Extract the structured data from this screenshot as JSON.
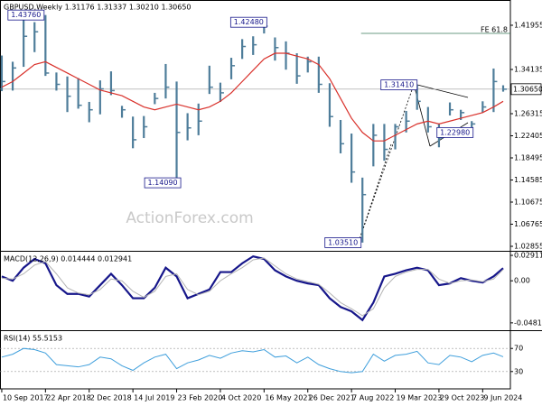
{
  "chart_data": [
    {
      "type": "ohlc",
      "title": "GBPUSD,Weekly  1.31176 1.31337 1.30210 1.30650",
      "x": [
        "2017-09-10",
        "2017-11-05",
        "2017-12-31",
        "2018-02-25",
        "2018-04-22",
        "2018-06-17",
        "2018-08-12",
        "2018-10-07",
        "2018-12-02",
        "2019-01-27",
        "2019-03-24",
        "2019-05-19",
        "2019-07-14",
        "2019-09-08",
        "2019-11-03",
        "2019-12-29",
        "2020-02-23",
        "2020-04-19",
        "2020-06-14",
        "2020-08-09",
        "2020-10-04",
        "2020-11-29",
        "2021-01-24",
        "2021-03-21",
        "2021-05-16",
        "2021-07-11",
        "2021-09-05",
        "2021-10-31",
        "2021-12-26",
        "2022-02-20",
        "2022-04-17",
        "2022-06-12",
        "2022-08-07",
        "2022-10-02",
        "2022-11-27",
        "2023-01-22",
        "2023-03-19",
        "2023-05-14",
        "2023-07-09",
        "2023-09-03",
        "2023-10-29",
        "2023-12-24",
        "2024-02-18",
        "2024-04-14",
        "2024-06-09",
        "2024-08-04",
        "2024-09-22"
      ],
      "bars": {
        "color": "#4e7d9a",
        "high": [
          1.366,
          1.355,
          1.435,
          1.425,
          1.4376,
          1.336,
          1.329,
          1.326,
          1.284,
          1.322,
          1.338,
          1.277,
          1.258,
          1.259,
          1.3,
          1.351,
          1.32,
          1.264,
          1.281,
          1.348,
          1.318,
          1.362,
          1.395,
          1.4,
          1.4248,
          1.398,
          1.391,
          1.37,
          1.364,
          1.364,
          1.317,
          1.252,
          1.228,
          1.15,
          1.245,
          1.245,
          1.245,
          1.268,
          1.3141,
          1.275,
          1.245,
          1.283,
          1.27,
          1.25,
          1.285,
          1.343,
          1.31337
        ],
        "low": [
          1.303,
          1.304,
          1.346,
          1.372,
          1.33,
          1.304,
          1.266,
          1.272,
          1.248,
          1.262,
          1.296,
          1.256,
          1.202,
          1.22,
          1.28,
          1.29,
          1.1409,
          1.216,
          1.225,
          1.298,
          1.284,
          1.324,
          1.36,
          1.367,
          1.405,
          1.357,
          1.341,
          1.316,
          1.336,
          1.3,
          1.24,
          1.193,
          1.141,
          1.0351,
          1.17,
          1.18,
          1.2,
          1.23,
          1.27,
          1.23,
          1.2037,
          1.26,
          1.252,
          1.2298,
          1.265,
          1.266,
          1.3021
        ],
        "close": [
          1.32,
          1.344,
          1.4,
          1.408,
          1.335,
          1.315,
          1.294,
          1.278,
          1.27,
          1.307,
          1.304,
          1.27,
          1.217,
          1.24,
          1.29,
          1.31,
          1.23,
          1.238,
          1.25,
          1.31,
          1.3,
          1.348,
          1.382,
          1.385,
          1.418,
          1.38,
          1.37,
          1.33,
          1.355,
          1.315,
          1.258,
          1.21,
          1.16,
          1.12,
          1.225,
          1.2,
          1.24,
          1.25,
          1.285,
          1.24,
          1.22,
          1.27,
          1.265,
          1.245,
          1.275,
          1.32,
          1.3065
        ]
      },
      "series": [
        {
          "color": "#d9312b",
          "values": [
            1.31,
            1.32,
            1.335,
            1.35,
            1.355,
            1.345,
            1.335,
            1.325,
            1.315,
            1.305,
            1.3,
            1.295,
            1.285,
            1.275,
            1.27,
            1.275,
            1.28,
            1.275,
            1.27,
            1.275,
            1.285,
            1.3,
            1.32,
            1.34,
            1.36,
            1.37,
            1.37,
            1.365,
            1.36,
            1.35,
            1.325,
            1.29,
            1.255,
            1.23,
            1.215,
            1.215,
            1.225,
            1.235,
            1.245,
            1.25,
            1.245,
            1.25,
            1.255,
            1.26,
            1.265,
            1.275,
            1.285
          ]
        }
      ],
      "xlim": [
        "2017-09-01",
        "2024-10-29"
      ],
      "xticks": [
        {
          "value": "2017-09-10",
          "label": "10 Sep 2017"
        },
        {
          "value": "2018-04-22",
          "label": "22 Apr 2018"
        },
        {
          "value": "2018-12-02",
          "label": "2 Dec 2018"
        },
        {
          "value": "2019-07-14",
          "label": "14 Jul 2019"
        },
        {
          "value": "2020-02-23",
          "label": "23 Feb 2020"
        },
        {
          "value": "2020-10-04",
          "label": "4 Oct 2020"
        },
        {
          "value": "2021-05-16",
          "label": "16 May 2021"
        },
        {
          "value": "2021-12-26",
          "label": "26 Dec 2021"
        },
        {
          "value": "2022-08-07",
          "label": "7 Aug 2022"
        },
        {
          "value": "2023-03-19",
          "label": "19 Mar 2023"
        },
        {
          "value": "2023-10-29",
          "label": "29 Oct 2023"
        },
        {
          "value": "2024-06-09",
          "label": "9 Jun 2024"
        }
      ],
      "ylim": [
        1.0206,
        1.4642
      ],
      "yticks": [
        1.41955,
        1.34135,
        {
          "value": 1.26315,
          "label": "1.26315"
        },
        1.22405,
        1.18495,
        1.14585,
        1.10675,
        1.06765,
        1.02855
      ],
      "price_marker": {
        "value": 1.3065,
        "label": "1.30650"
      },
      "levels": [
        {
          "label": "FE 61.8",
          "value": 1.4052,
          "x": "2022-09-25"
        }
      ],
      "annotations": [
        {
          "x": "2018-04-15",
          "value": 1.4376,
          "label": "1.43760"
        },
        {
          "x": "2021-05-30",
          "value": 1.4248,
          "label": "1.42480"
        },
        {
          "x": "2020-03-15",
          "value": 1.1409,
          "label": "1.14090"
        },
        {
          "x": "2022-09-25",
          "value": 1.0351,
          "label": "1.03510"
        },
        {
          "x": "2023-07-09",
          "value": 1.3141,
          "label": "1.31410"
        },
        {
          "x": "2024-04-21",
          "value": 1.2298,
          "label": "1.22980"
        }
      ],
      "watermark": "ActionForex.com"
    },
    {
      "type": "line",
      "title": "MACD(12,26,9) 0.014444 0.012941",
      "series": [
        {
          "color": "#16168a",
          "width": 2.2,
          "values": [
            0.005,
            0,
            0.015,
            0.025,
            0.02,
            -0.005,
            -0.015,
            -0.015,
            -0.018,
            -0.005,
            0.008,
            -0.005,
            -0.02,
            -0.02,
            -0.008,
            0.015,
            0.005,
            -0.02,
            -0.015,
            -0.01,
            0.01,
            0.01,
            0.02,
            0.028,
            0.025,
            0.012,
            0.005,
            0,
            -0.003,
            -0.005,
            -0.02,
            -0.03,
            -0.035,
            -0.045,
            -0.025,
            0.005,
            0.008,
            0.012,
            0.015,
            0.012,
            -0.005,
            -0.003,
            0.003,
            0,
            -0.002,
            0.005,
            0.014444
          ]
        },
        {
          "color": "#b4b4b4",
          "width": 1,
          "values": [
            0.003,
            0.002,
            0.008,
            0.018,
            0.022,
            0.008,
            -0.008,
            -0.014,
            -0.016,
            -0.01,
            0.002,
            0,
            -0.012,
            -0.019,
            -0.012,
            0.005,
            0.008,
            -0.01,
            -0.016,
            -0.012,
            0,
            0.008,
            0.015,
            0.024,
            0.026,
            0.017,
            0.008,
            0.002,
            -0.001,
            -0.004,
            -0.014,
            -0.025,
            -0.032,
            -0.04,
            -0.032,
            -0.008,
            0.005,
            0.01,
            0.013,
            0.013,
            0.002,
            -0.003,
            0,
            0.001,
            -0.001,
            0.002,
            0.012941
          ]
        }
      ],
      "ylim": [
        -0.0566,
        0.0333
      ],
      "yticks": [
        0.029114,
        {
          "value": 0,
          "label": "0.00"
        },
        -0.048189
      ],
      "grid": false
    },
    {
      "type": "line",
      "title": "RSI(14) 55.5153",
      "series": [
        {
          "color": "#3f9fdc",
          "width": 1,
          "values": [
            55,
            60,
            70,
            68,
            62,
            42,
            40,
            38,
            42,
            55,
            52,
            40,
            32,
            45,
            55,
            60,
            35,
            45,
            50,
            58,
            53,
            62,
            66,
            64,
            68,
            55,
            57,
            45,
            55,
            42,
            35,
            30,
            28,
            30,
            60,
            48,
            58,
            60,
            65,
            45,
            42,
            58,
            55,
            47,
            58,
            62,
            55.5153
          ]
        }
      ],
      "ylim": [
        0,
        100
      ],
      "yticks": [
        70,
        30
      ],
      "grid": true
    }
  ]
}
